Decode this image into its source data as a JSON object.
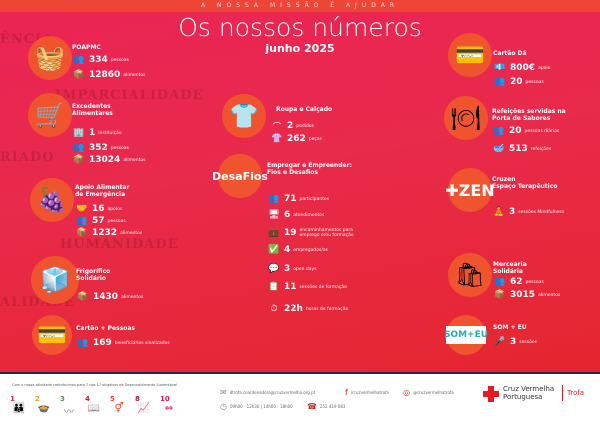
{
  "header": {
    "mission": "A NOSSA MISSÃO É AJUDAR",
    "title": "Os nossos números",
    "subtitle": "junho 2025"
  },
  "watermarks": [
    "IMPARCIALIDADE",
    "HUMANIDADE",
    "ALIDADE",
    "RIADO",
    "ÊNCIA"
  ],
  "sections": [
    {
      "id": "poapmc",
      "icon": "picnic-basket-icon",
      "glyph": "🧺",
      "title": [
        "POAPMC"
      ],
      "stats": [
        {
          "icon": "people-icon",
          "glyph": "👥",
          "value": "334",
          "label": "pessoas"
        },
        {
          "icon": "food-box-icon",
          "glyph": "📦",
          "value": "12860",
          "label": "alimentos"
        }
      ]
    },
    {
      "id": "excedentes",
      "icon": "shopping-basket-icon",
      "glyph": "🛒",
      "title": [
        "Excedentes",
        "Alimentares"
      ],
      "stats": [
        {
          "icon": "institution-icon",
          "glyph": "🏢",
          "value": "1",
          "label": "instituição"
        },
        {
          "icon": "people-icon",
          "glyph": "👥",
          "value": "352",
          "label": "pessoas"
        },
        {
          "icon": "food-box-icon",
          "glyph": "📦",
          "value": "13024",
          "label": "alimentos"
        }
      ]
    },
    {
      "id": "apoio-alimentar",
      "icon": "fruit-basket-icon",
      "glyph": "🍇",
      "title": [
        "Apoio Alimentar",
        "de Emergência"
      ],
      "stats": [
        {
          "icon": "support-icon",
          "glyph": "🤝",
          "value": "16",
          "label": "apoios"
        },
        {
          "icon": "people-icon",
          "glyph": "👥",
          "value": "57",
          "label": "pessoas"
        },
        {
          "icon": "food-box-icon",
          "glyph": "📦",
          "value": "1232",
          "label": "alimentos"
        }
      ]
    },
    {
      "id": "frigorifico",
      "icon": "fridge-icon",
      "glyph": "🧊",
      "title": [
        "Frigorífico",
        "Solidário"
      ],
      "stats": [
        {
          "icon": "food-box-icon",
          "glyph": "📦",
          "value": "1430",
          "label": "alimentos"
        }
      ]
    },
    {
      "id": "cartao-pessoas",
      "icon": "card-icon",
      "glyph": "💳",
      "title": [
        "Cartão + Pessoas"
      ],
      "stats": [
        {
          "icon": "group-icon",
          "glyph": "👥",
          "value": "169",
          "label": "beneficiários sinalizados"
        }
      ]
    },
    {
      "id": "roupa",
      "icon": "clothing-icon",
      "glyph": "👕",
      "title": [
        "Roupa e Calçado"
      ],
      "stats": [
        {
          "icon": "hanger-icon",
          "glyph": "⌒",
          "value": "2",
          "label": "pedidos"
        },
        {
          "icon": "clothes-rack-icon",
          "glyph": "👚",
          "value": "262",
          "label": "peças"
        }
      ]
    },
    {
      "id": "empregar",
      "icon": "desafios-logo",
      "logo": "DesaFios",
      "title": [
        "Empregar e Empreender:",
        "Fios e Desafios"
      ],
      "stats": [
        {
          "icon": "people-icon",
          "glyph": "👥",
          "value": "71",
          "label": "participantes"
        },
        {
          "icon": "office-icon",
          "glyph": "🖥",
          "value": "6",
          "label": "atendimentos"
        },
        {
          "icon": "referral-icon",
          "glyph": "💼",
          "value": "19",
          "label": "encaminhamentos para emprego e/ou formação"
        },
        {
          "icon": "check-icon",
          "glyph": "✅",
          "value": "4",
          "label": "empregados/as"
        },
        {
          "icon": "open-day-icon",
          "glyph": "💬",
          "value": "3",
          "label": "open days"
        },
        {
          "icon": "training-icon",
          "glyph": "📋",
          "value": "11",
          "label": "sessões de formação"
        },
        {
          "icon": "clock-icon",
          "glyph": "⏱",
          "value": "22h",
          "label": "horas de formação"
        }
      ]
    },
    {
      "id": "cartao-da",
      "icon": "card-hand-icon",
      "glyph": "💳",
      "title": [
        "Cartão Dá"
      ],
      "stats": [
        {
          "icon": "money-hand-icon",
          "glyph": "💶",
          "value": "800€",
          "label": "apoio"
        },
        {
          "icon": "people-icon",
          "glyph": "👥",
          "value": "20",
          "label": "pessoas"
        }
      ]
    },
    {
      "id": "refeicoes",
      "icon": "plate-icon",
      "glyph": "🍽",
      "title": [
        "Refeições servidas na",
        "Porta de Sabores"
      ],
      "stats": [
        {
          "icon": "people-icon",
          "glyph": "👥",
          "value": "20",
          "label": "pessoas diárias"
        },
        {
          "icon": "soup-bowl-icon",
          "glyph": "🥣",
          "value": "513",
          "label": "refeições"
        }
      ]
    },
    {
      "id": "cruzen",
      "icon": "cruzen-logo",
      "logo": "ZEN",
      "title": [
        "Cruzen",
        "Espaço Terapêutico"
      ],
      "stats": [
        {
          "icon": "meditation-icon",
          "glyph": "🧘",
          "value": "3",
          "label": "sessões Mindfulness"
        }
      ]
    },
    {
      "id": "mercearia",
      "icon": "grocery-bag-icon",
      "glyph": "🛍",
      "title": [
        "Mercearia",
        "Solidária"
      ],
      "stats": [
        {
          "icon": "people-icon",
          "glyph": "👥",
          "value": "62",
          "label": "pessoas"
        },
        {
          "icon": "food-box-icon",
          "glyph": "📦",
          "value": "3015",
          "label": "alimentos"
        }
      ]
    },
    {
      "id": "som-eu",
      "icon": "som-eu-logo",
      "logo": "SOM+EU",
      "title": [
        "SOM + EU"
      ],
      "stats": [
        {
          "icon": "microphone-icon",
          "glyph": "🎤",
          "value": "3",
          "label": "sessões"
        }
      ]
    }
  ],
  "footer": {
    "sdg_intro": "Com a nossa atividade contribuímos para 7 dos 17 objetivos de Desenvolvimento Sustentável",
    "sdgs": [
      {
        "n": "1",
        "glyph": "👪",
        "color": "#e5243b"
      },
      {
        "n": "2",
        "glyph": "🍲",
        "color": "#dda63a"
      },
      {
        "n": "3",
        "glyph": "〰",
        "color": "#4c9f38"
      },
      {
        "n": "4",
        "glyph": "📖",
        "color": "#c5192d"
      },
      {
        "n": "5",
        "glyph": "⚥",
        "color": "#ff3a21"
      },
      {
        "n": "8",
        "glyph": "📈",
        "color": "#a21942"
      },
      {
        "n": "10",
        "glyph": "⇔",
        "color": "#dd1367"
      }
    ],
    "email": "dtrofa.coordenadora@cruzvermelha.org.pt",
    "facebook": "/cruzvermelhatrofa",
    "instagram": "@cruzvermelhatrofa",
    "hours": "09h00 - 12h30 | 14h00 - 18h00",
    "phone": "252 419 083",
    "brand": [
      "Cruz Vermelha",
      "Portuguesa"
    ],
    "branch": "Trofa"
  }
}
